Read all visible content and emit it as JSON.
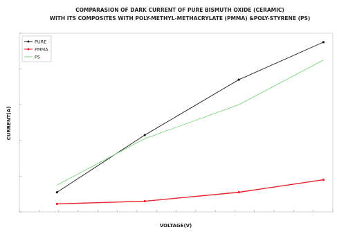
{
  "chart_data": {
    "type": "line",
    "title": "COMPARASION OF DARK CURRENT OF PURE BISMUTH OXIDE (CERAMIC)",
    "subtitle": "WITH ITS COMPOSITES WITH POLY-METHYL-METHACRYLATE (PMMA) &POLY-STYRENE (PS)",
    "xlabel": "VOLTAGE(V)",
    "ylabel": "CURRENT(A)",
    "xlim": [
      0,
      1
    ],
    "ylim": [
      0,
      1
    ],
    "x_ticks": [],
    "y_ticks": [],
    "grid": false,
    "legend_position": "top-left",
    "series": [
      {
        "name": "PURE",
        "color": "#1a1a1a",
        "marker": "dot",
        "x": [
          0.12,
          0.4,
          0.7,
          0.97
        ],
        "y": [
          0.11,
          0.43,
          0.74,
          0.95
        ]
      },
      {
        "name": "PMMA",
        "color": "#e8202a",
        "marker": "dot",
        "x": [
          0.12,
          0.4,
          0.7,
          0.97
        ],
        "y": [
          0.045,
          0.06,
          0.11,
          0.18
        ]
      },
      {
        "name": "PS",
        "color": "#7fd47f",
        "marker": "none",
        "x": [
          0.12,
          0.4,
          0.7,
          0.97
        ],
        "y": [
          0.15,
          0.41,
          0.6,
          0.85
        ]
      }
    ]
  }
}
